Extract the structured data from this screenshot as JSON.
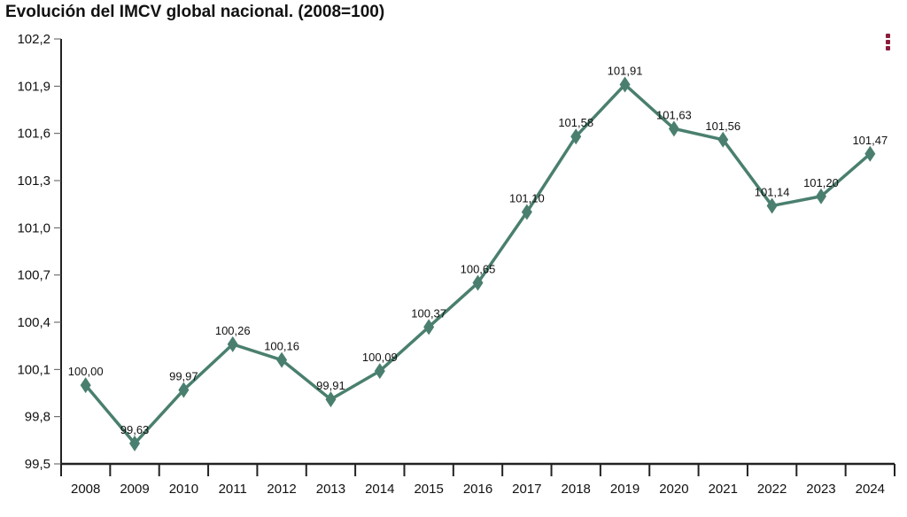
{
  "chart_data": {
    "type": "line",
    "title": "Evolución del IMCV global nacional. (2008=100)",
    "categories": [
      "2008",
      "2009",
      "2010",
      "2011",
      "2012",
      "2013",
      "2014",
      "2015",
      "2016",
      "2017",
      "2018",
      "2019",
      "2020",
      "2021",
      "2022",
      "2023",
      "2024"
    ],
    "values": [
      100.0,
      99.63,
      99.97,
      100.26,
      100.16,
      99.91,
      100.09,
      100.37,
      100.65,
      101.1,
      101.58,
      101.91,
      101.63,
      101.56,
      101.14,
      101.2,
      101.47
    ],
    "data_labels": [
      "100,00",
      "99,63",
      "99,97",
      "100,26",
      "100,16",
      "99,91",
      "100,09",
      "100,37",
      "100,65",
      "101,10",
      "101,58",
      "101,91",
      "101,63",
      "101,56",
      "101,14",
      "101,20",
      "101,47"
    ],
    "ylim": [
      99.5,
      102.2
    ],
    "yticks": [
      99.5,
      99.8,
      100.1,
      100.4,
      100.7,
      101.0,
      101.3,
      101.6,
      101.9,
      102.2
    ],
    "ytick_labels": [
      "99,5",
      "99,8",
      "100,1",
      "100,4",
      "100,7",
      "101,0",
      "101,3",
      "101,6",
      "101,9",
      "102,2"
    ],
    "xlabel": "",
    "ylabel": "",
    "grid": false,
    "legend": "none",
    "marker": "diamond",
    "series_color": "#4a7f6f"
  },
  "menu": {
    "icon": "kebab-menu-icon",
    "color": "#8a1c3c"
  }
}
